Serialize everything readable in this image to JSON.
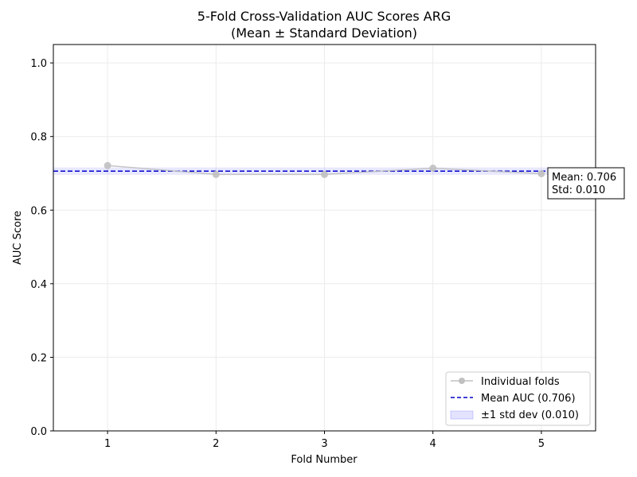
{
  "chart_data": {
    "type": "line",
    "title": "5-Fold Cross-Validation AUC Scores ARG",
    "subtitle": "(Mean ± Standard Deviation)",
    "xlabel": "Fold Number",
    "ylabel": "AUC Score",
    "xlim": [
      0.5,
      5.5
    ],
    "ylim": [
      0.0,
      1.05
    ],
    "xticks": [
      1,
      2,
      3,
      4,
      5
    ],
    "yticks": [
      0.0,
      0.2,
      0.4,
      0.6,
      0.8,
      1.0
    ],
    "grid": true,
    "legend_position": "bottom-right",
    "x": [
      1,
      2,
      3,
      4,
      5
    ],
    "series": [
      {
        "name": "Individual folds",
        "values": [
          0.721,
          0.697,
          0.697,
          0.714,
          0.699
        ],
        "color": "#c0c0c0",
        "marker": "circle"
      }
    ],
    "mean": 0.706,
    "std": 0.01,
    "mean_color": "#0000cc",
    "band_color": "#6666ff",
    "legend": [
      "Individual folds",
      "Mean AUC (0.706)",
      "±1 std dev (0.010)"
    ],
    "annotation_lines": [
      "Mean: 0.706",
      "Std: 0.010"
    ]
  }
}
